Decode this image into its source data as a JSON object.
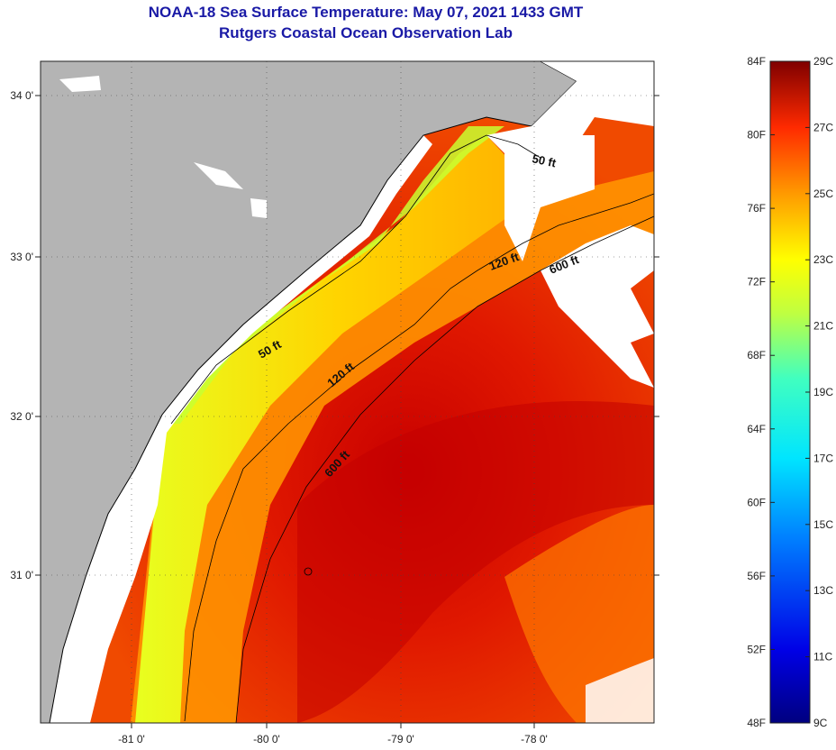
{
  "title": {
    "line1": "NOAA-18 Sea Surface Temperature:  May 07, 2021 1433 GMT",
    "line2": "Rutgers Coastal Ocean Observation Lab"
  },
  "map": {
    "lon_ticks": [
      "-81 0'",
      "-80 0'",
      "-79 0'",
      "-78 0'"
    ],
    "lat_ticks": [
      "34 0'",
      "33 0'",
      "32 0'",
      "31 0'"
    ],
    "contours": [
      "50 ft",
      "120 ft",
      "600 ft",
      "50 ft",
      "120 ft",
      "600 ft"
    ],
    "colors": {
      "land": "#b4b4b4",
      "cloud": "#ffffff",
      "coast": "#000000"
    }
  },
  "colorbar": {
    "fahrenheit_labels": [
      "84F",
      "80F",
      "76F",
      "72F",
      "68F",
      "64F",
      "60F",
      "56F",
      "52F",
      "48F"
    ],
    "celsius_labels": [
      "29C",
      "27C",
      "25C",
      "23C",
      "21C",
      "19C",
      "17C",
      "15C",
      "13C",
      "11C",
      "9C"
    ],
    "range_f": [
      48,
      84
    ],
    "range_c": [
      9,
      29
    ]
  }
}
